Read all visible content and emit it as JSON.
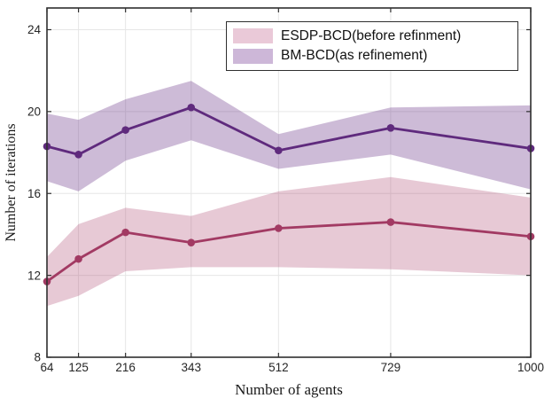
{
  "chart_data": {
    "type": "line",
    "title": "",
    "xlabel": "Number of agents",
    "ylabel": "Number of iterations",
    "xlim": [
      64,
      1000
    ],
    "ylim": [
      8,
      25.06
    ],
    "xticks": [
      64,
      125,
      216,
      343,
      512,
      729,
      1000
    ],
    "yticks": [
      8,
      12,
      16,
      20,
      24
    ],
    "grid": true,
    "legend_position": "top-right",
    "x": [
      64,
      125,
      216,
      343,
      512,
      729,
      1000
    ],
    "series": [
      {
        "name": "ESDP-BCD(before refinment)",
        "values": [
          11.7,
          12.8,
          14.1,
          13.6,
          14.3,
          14.6,
          13.9
        ],
        "band_upper": [
          12.9,
          14.5,
          15.3,
          14.9,
          16.1,
          16.8,
          15.8
        ],
        "band_lower": [
          10.5,
          11.0,
          12.2,
          12.4,
          12.4,
          12.3,
          12.0
        ],
        "line_color": "#a23a63",
        "fill_color": "rgba(168,62,104,0.28)",
        "swatch_color": "#eac9d8",
        "marker": "circle"
      },
      {
        "name": "BM-BCD(as refinement)",
        "values": [
          18.3,
          17.9,
          19.1,
          20.2,
          18.1,
          19.2,
          18.2
        ],
        "band_upper": [
          19.9,
          19.6,
          20.6,
          21.5,
          18.9,
          20.2,
          20.3
        ],
        "band_lower": [
          16.6,
          16.1,
          17.6,
          18.6,
          17.2,
          17.9,
          16.2
        ],
        "line_color": "#5f2a7d",
        "fill_color": "rgba(100,45,130,0.32)",
        "swatch_color": "#cdb7d8",
        "marker": "circle"
      }
    ],
    "style": {
      "axis_color": "#2f2f2f",
      "grid_color": "#e6e6e6",
      "tick_label_color": "#262626"
    }
  }
}
